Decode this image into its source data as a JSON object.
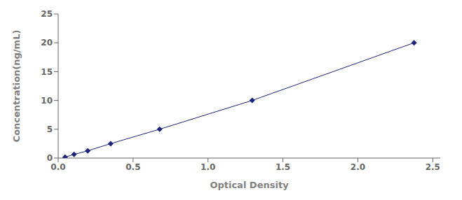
{
  "chart_data": {
    "type": "line",
    "x": [
      0.046,
      0.106,
      0.197,
      0.35,
      0.677,
      1.295,
      2.375
    ],
    "values": [
      0.156,
      0.625,
      1.25,
      2.5,
      5.0,
      10.0,
      20.0
    ],
    "color": "#1a237e",
    "marker": "diamond",
    "line_style": "solid",
    "xlabel": "Optical Density",
    "ylabel": "Concentration(ng/mL)",
    "xlim": [
      0,
      2.55
    ],
    "ylim": [
      0,
      25
    ],
    "xticks": [
      {
        "value": 0,
        "label": "0.0"
      },
      0.5,
      {
        "value": 1,
        "label": "1.0"
      },
      1.5,
      {
        "value": 2,
        "label": "2.0"
      },
      2.5
    ],
    "yticks": [
      0,
      5,
      10,
      15,
      20,
      25
    ],
    "grid": false
  }
}
